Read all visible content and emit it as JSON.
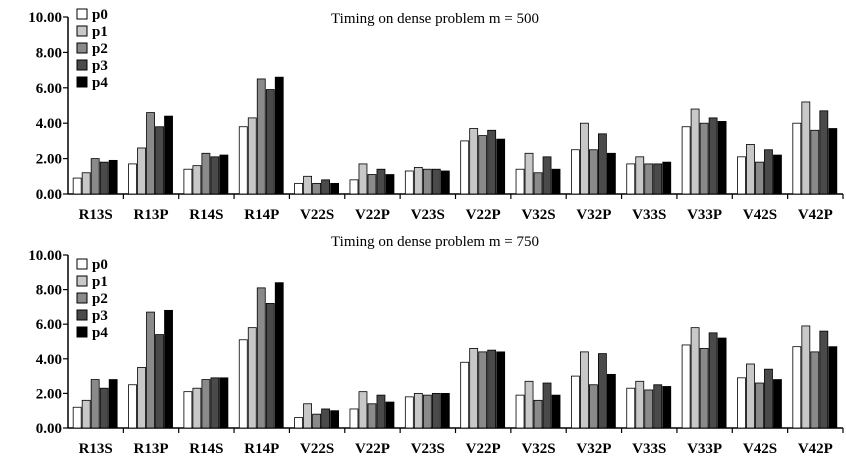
{
  "chart_data": [
    {
      "type": "bar",
      "title": "Timing on dense problem m = 500",
      "xlabel": "",
      "ylabel": "",
      "ylim": [
        0,
        10
      ],
      "yticks": [
        "0.00",
        "2.00",
        "4.00",
        "6.00",
        "8.00",
        "10.00"
      ],
      "grid": false,
      "legend_position": "top-left",
      "categories": [
        "R13S",
        "R13P",
        "R14S",
        "R14P",
        "V22S",
        "V22P",
        "V23S",
        "V22P",
        "V32S",
        "V32P",
        "V33S",
        "V33P",
        "V42S",
        "V42P"
      ],
      "series": [
        {
          "name": "p0",
          "color": "#ffffff",
          "values": [
            0.9,
            1.7,
            1.4,
            3.8,
            0.6,
            0.8,
            1.3,
            3.0,
            1.4,
            2.5,
            1.7,
            3.8,
            2.1,
            4.0
          ]
        },
        {
          "name": "p1",
          "color": "#c8c8c8",
          "values": [
            1.2,
            2.6,
            1.6,
            4.3,
            1.0,
            1.7,
            1.5,
            3.7,
            2.3,
            4.0,
            2.1,
            4.8,
            2.8,
            5.2
          ]
        },
        {
          "name": "p2",
          "color": "#8a8a8a",
          "values": [
            2.0,
            4.6,
            2.3,
            6.5,
            0.6,
            1.1,
            1.4,
            3.3,
            1.2,
            2.5,
            1.7,
            4.0,
            1.8,
            3.6
          ]
        },
        {
          "name": "p3",
          "color": "#4a4a4a",
          "values": [
            1.8,
            3.8,
            2.1,
            5.9,
            0.8,
            1.4,
            1.4,
            3.6,
            2.1,
            3.4,
            1.7,
            4.3,
            2.5,
            4.7
          ]
        },
        {
          "name": "p4",
          "color": "#000000",
          "values": [
            1.9,
            4.4,
            2.2,
            6.6,
            0.6,
            1.1,
            1.3,
            3.1,
            1.4,
            2.3,
            1.8,
            4.1,
            2.2,
            3.7
          ]
        }
      ]
    },
    {
      "type": "bar",
      "title": "Timing on dense problem m = 750",
      "xlabel": "",
      "ylabel": "",
      "ylim": [
        0,
        10
      ],
      "yticks": [
        "0.00",
        "2.00",
        "4.00",
        "6.00",
        "8.00",
        "10.00"
      ],
      "grid": false,
      "legend_position": "top-left",
      "categories": [
        "R13S",
        "R13P",
        "R14S",
        "R14P",
        "V22S",
        "V22P",
        "V23S",
        "V22P",
        "V32S",
        "V32P",
        "V33S",
        "V33P",
        "V42S",
        "V42P"
      ],
      "series": [
        {
          "name": "p0",
          "color": "#ffffff",
          "values": [
            1.2,
            2.5,
            2.1,
            5.1,
            0.6,
            1.1,
            1.8,
            3.8,
            1.9,
            3.0,
            2.3,
            4.8,
            2.9,
            4.7
          ]
        },
        {
          "name": "p1",
          "color": "#c8c8c8",
          "values": [
            1.6,
            3.5,
            2.3,
            5.8,
            1.4,
            2.1,
            2.0,
            4.6,
            2.7,
            4.4,
            2.7,
            5.8,
            3.7,
            5.9
          ]
        },
        {
          "name": "p2",
          "color": "#8a8a8a",
          "values": [
            2.8,
            6.7,
            2.8,
            8.1,
            0.8,
            1.4,
            1.9,
            4.4,
            1.6,
            2.5,
            2.2,
            4.6,
            2.6,
            4.4
          ]
        },
        {
          "name": "p3",
          "color": "#4a4a4a",
          "values": [
            2.3,
            5.4,
            2.9,
            7.2,
            1.1,
            1.9,
            2.0,
            4.5,
            2.6,
            4.3,
            2.5,
            5.5,
            3.4,
            5.6
          ]
        },
        {
          "name": "p4",
          "color": "#000000",
          "values": [
            2.8,
            6.8,
            2.9,
            8.4,
            1.0,
            1.5,
            2.0,
            4.4,
            1.9,
            3.1,
            2.4,
            5.2,
            2.8,
            4.7
          ]
        }
      ]
    }
  ]
}
